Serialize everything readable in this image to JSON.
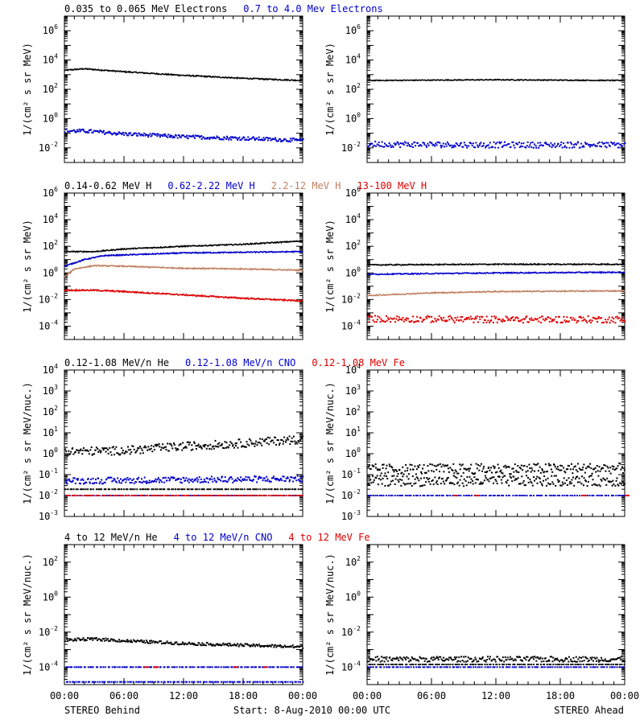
{
  "footer": {
    "left": "STEREO Behind",
    "center": "Start:  8-Aug-2010 00:00 UTC",
    "right": "STEREO Ahead"
  },
  "colors": {
    "black": "#000000",
    "blue": "#0000cc",
    "tan": "#c08060",
    "red": "#e00000"
  },
  "chart_data": [
    {
      "type": "scatter",
      "panel": "row1-behind",
      "titles": [
        {
          "text": "0.035 to 0.065 MeV Electrons",
          "color": "#000000"
        },
        {
          "text": "0.7 to 4.0 Mev Electrons",
          "color": "#0000cc"
        }
      ],
      "ylabel": "1/(cm² s sr MeV)",
      "yscale": "log",
      "ylim_exp": [
        -3,
        7
      ],
      "ytick_exps": [
        -2,
        0,
        2,
        4,
        6
      ],
      "xlim_hours": [
        0,
        24
      ],
      "xtick_labels": [
        "00:00",
        "06:00",
        "12:00",
        "18:00",
        "00:00"
      ],
      "series": [
        {
          "color": "#000000",
          "style": "line",
          "x": [
            0,
            2,
            6,
            12,
            18,
            24
          ],
          "log10": [
            3.3,
            3.4,
            3.2,
            2.95,
            2.75,
            2.6
          ],
          "noise": 0.04
        },
        {
          "color": "#0000cc",
          "style": "dots",
          "x": [
            0,
            2,
            6,
            12,
            18,
            24
          ],
          "log10": [
            -0.85,
            -0.85,
            -1.05,
            -1.25,
            -1.35,
            -1.5
          ],
          "noise": 0.12
        }
      ]
    },
    {
      "type": "scatter",
      "panel": "row1-ahead",
      "ylabel": "1/(cm² s sr MeV)",
      "yscale": "log",
      "ylim_exp": [
        -3,
        7
      ],
      "ytick_exps": [
        -2,
        0,
        2,
        4,
        6
      ],
      "xlim_hours": [
        0,
        24
      ],
      "xtick_labels": [
        "00:00",
        "06:00",
        "12:00",
        "18:00",
        "00:00"
      ],
      "series": [
        {
          "color": "#000000",
          "style": "line",
          "x": [
            0,
            12,
            24
          ],
          "log10": [
            2.6,
            2.65,
            2.6
          ],
          "noise": 0.03
        },
        {
          "color": "#0000cc",
          "style": "dots",
          "x": [
            0,
            12,
            24
          ],
          "log10": [
            -1.75,
            -1.8,
            -1.8
          ],
          "noise": 0.2
        }
      ]
    },
    {
      "type": "scatter",
      "panel": "row2-behind",
      "titles": [
        {
          "text": "0.14-0.62 MeV H",
          "color": "#000000"
        },
        {
          "text": "0.62-2.22 MeV H",
          "color": "#0000cc"
        },
        {
          "text": "2.2-12 MeV H",
          "color": "#c08060"
        },
        {
          "text": "13-100 MeV H",
          "color": "#e00000"
        }
      ],
      "ylabel": "1/(cm² s sr MeV)",
      "yscale": "log",
      "ylim_exp": [
        -5,
        6
      ],
      "ytick_exps": [
        -4,
        -2,
        0,
        2,
        4,
        6
      ],
      "xlim_hours": [
        0,
        24
      ],
      "xtick_labels": [
        "00:00",
        "06:00",
        "12:00",
        "18:00",
        "00:00"
      ],
      "series": [
        {
          "color": "#000000",
          "style": "line",
          "x": [
            0,
            3,
            6,
            12,
            18,
            24
          ],
          "log10": [
            1.6,
            1.6,
            1.8,
            2.0,
            2.15,
            2.4
          ],
          "noise": 0.04
        },
        {
          "color": "#0000cc",
          "style": "line",
          "x": [
            0,
            2,
            4,
            8,
            12,
            18,
            24
          ],
          "log10": [
            0.5,
            1.0,
            1.3,
            1.4,
            1.5,
            1.55,
            1.6
          ],
          "noise": 0.04
        },
        {
          "color": "#c08060",
          "style": "line",
          "x": [
            0,
            1,
            3,
            6,
            12,
            18,
            24
          ],
          "log10": [
            -0.3,
            0.3,
            0.55,
            0.5,
            0.35,
            0.3,
            0.2
          ],
          "noise": 0.04
        },
        {
          "color": "#e00000",
          "style": "line",
          "x": [
            0,
            3,
            6,
            12,
            18,
            24
          ],
          "log10": [
            -1.3,
            -1.3,
            -1.4,
            -1.65,
            -1.9,
            -2.1
          ],
          "noise": 0.05
        }
      ]
    },
    {
      "type": "scatter",
      "panel": "row2-ahead",
      "ylabel": "1/(cm² s sr MeV)",
      "yscale": "log",
      "ylim_exp": [
        -5,
        6
      ],
      "ytick_exps": [
        -4,
        -2,
        0,
        2,
        4,
        6
      ],
      "xlim_hours": [
        0,
        24
      ],
      "xtick_labels": [
        "00:00",
        "06:00",
        "12:00",
        "18:00",
        "00:00"
      ],
      "series": [
        {
          "color": "#000000",
          "style": "line",
          "x": [
            0,
            12,
            24
          ],
          "log10": [
            0.6,
            0.65,
            0.65
          ],
          "noise": 0.04
        },
        {
          "color": "#0000cc",
          "style": "line",
          "x": [
            0,
            12,
            24
          ],
          "log10": [
            -0.1,
            0.0,
            0.05
          ],
          "noise": 0.04
        },
        {
          "color": "#c08060",
          "style": "line",
          "x": [
            0,
            6,
            12,
            24
          ],
          "log10": [
            -1.7,
            -1.5,
            -1.4,
            -1.35
          ],
          "noise": 0.04
        },
        {
          "color": "#e00000",
          "style": "dots",
          "x": [
            0,
            12,
            24
          ],
          "log10": [
            -3.45,
            -3.5,
            -3.5
          ],
          "noise": 0.25
        }
      ]
    },
    {
      "type": "scatter",
      "panel": "row3-behind",
      "titles": [
        {
          "text": "0.12-1.08 MeV/n He",
          "color": "#000000"
        },
        {
          "text": "0.12-1.08 MeV/n CNO",
          "color": "#0000cc"
        },
        {
          "text": "0.12-1.08 MeV Fe",
          "color": "#e00000"
        }
      ],
      "ylabel": "1/(cm² s sr MeV/nuc.)",
      "yscale": "log",
      "ylim_exp": [
        -3,
        4
      ],
      "ytick_exps": [
        -3,
        -2,
        -1,
        0,
        1,
        2,
        3,
        4
      ],
      "xlim_hours": [
        0,
        24
      ],
      "xtick_labels": [
        "00:00",
        "06:00",
        "12:00",
        "18:00",
        "00:00"
      ],
      "series": [
        {
          "color": "#000000",
          "style": "dots",
          "x": [
            0,
            6,
            12,
            18,
            24
          ],
          "log10": [
            0.1,
            0.15,
            0.35,
            0.5,
            0.7
          ],
          "noise": 0.2
        },
        {
          "color": "#000000",
          "style": "dots",
          "x": [
            0,
            24
          ],
          "log10": [
            -1.7,
            -1.7
          ],
          "noise": 0.0
        },
        {
          "color": "#0000cc",
          "style": "dots",
          "x": [
            0,
            24
          ],
          "log10": [
            -1.3,
            -1.2
          ],
          "noise": 0.15
        },
        {
          "color": "#0000cc",
          "style": "dots",
          "x": [
            0,
            24
          ],
          "log10": [
            -2.0,
            -2.0
          ],
          "noise": 0.0
        },
        {
          "color": "#e00000",
          "style": "dots",
          "x": [
            0,
            24
          ],
          "log10": [
            -2.0,
            -2.0
          ],
          "noise": 0.0
        }
      ]
    },
    {
      "type": "scatter",
      "panel": "row3-ahead",
      "ylabel": "1/(cm² s sr MeV/nuc.)",
      "yscale": "log",
      "ylim_exp": [
        -3,
        4
      ],
      "ytick_exps": [
        -3,
        -2,
        -1,
        0,
        1,
        2,
        3,
        4
      ],
      "xlim_hours": [
        0,
        24
      ],
      "xtick_labels": [
        "00:00",
        "06:00",
        "12:00",
        "18:00",
        "00:00"
      ],
      "series": [
        {
          "color": "#000000",
          "style": "dots",
          "x": [
            0,
            24
          ],
          "log10": [
            -0.75,
            -0.7
          ],
          "noise": 0.25
        },
        {
          "color": "#000000",
          "style": "dots",
          "x": [
            0,
            24
          ],
          "log10": [
            -1.3,
            -1.3
          ],
          "noise": 0.25
        },
        {
          "color": "#0000cc",
          "style": "dots",
          "x": [
            0,
            24
          ],
          "log10": [
            -2.0,
            -2.0
          ],
          "noise": 0.0
        },
        {
          "color": "#e00000",
          "style": "dots",
          "x": [
            8,
            10,
            20,
            24
          ],
          "log10": [
            -2.0,
            -2.0,
            -2.0,
            -2.0
          ],
          "noise": 0.0
        }
      ]
    },
    {
      "type": "scatter",
      "panel": "row4-behind",
      "titles": [
        {
          "text": "4 to 12 MeV/n He",
          "color": "#000000"
        },
        {
          "text": "4 to 12 MeV/n CNO",
          "color": "#0000cc"
        },
        {
          "text": "4 to 12 MeV Fe",
          "color": "#e00000"
        }
      ],
      "ylabel": "1/(cm² s sr MeV/nuc.)",
      "yscale": "log",
      "ylim_exp": [
        -5,
        3
      ],
      "ytick_exps": [
        -4,
        -2,
        0,
        2
      ],
      "xlim_hours": [
        0,
        24
      ],
      "xtick_labels": [
        "00:00",
        "06:00",
        "12:00",
        "18:00",
        "00:00"
      ],
      "series": [
        {
          "color": "#000000",
          "style": "dots",
          "x": [
            0,
            3,
            6,
            12,
            18,
            24
          ],
          "log10": [
            -2.45,
            -2.4,
            -2.5,
            -2.65,
            -2.75,
            -2.85
          ],
          "noise": 0.08
        },
        {
          "color": "#0000cc",
          "style": "dots",
          "x": [
            0,
            24
          ],
          "log10": [
            -4.0,
            -4.0
          ],
          "noise": 0.0
        },
        {
          "color": "#0000cc",
          "style": "dots",
          "x": [
            0,
            24
          ],
          "log10": [
            -4.85,
            -4.85
          ],
          "noise": 0.0
        },
        {
          "color": "#e00000",
          "style": "dots",
          "x": [
            8,
            9,
            17,
            20
          ],
          "log10": [
            -4.0,
            -4.0,
            -4.0,
            -4.0
          ],
          "noise": 0.0
        }
      ]
    },
    {
      "type": "scatter",
      "panel": "row4-ahead",
      "ylabel": "1/(cm² s sr MeV/nuc.)",
      "yscale": "log",
      "ylim_exp": [
        -5,
        3
      ],
      "ytick_exps": [
        -4,
        -2,
        0,
        2
      ],
      "xlim_hours": [
        0,
        24
      ],
      "xtick_labels": [
        "00:00",
        "06:00",
        "12:00",
        "18:00",
        "00:00"
      ],
      "series": [
        {
          "color": "#000000",
          "style": "dots",
          "x": [
            0,
            24
          ],
          "log10": [
            -3.55,
            -3.55
          ],
          "noise": 0.15
        },
        {
          "color": "#000000",
          "style": "dots",
          "x": [
            0,
            24
          ],
          "log10": [
            -3.85,
            -3.85
          ],
          "noise": 0.0
        },
        {
          "color": "#0000cc",
          "style": "dots",
          "x": [
            0,
            24
          ],
          "log10": [
            -4.0,
            -4.0
          ],
          "noise": 0.0
        }
      ]
    }
  ]
}
